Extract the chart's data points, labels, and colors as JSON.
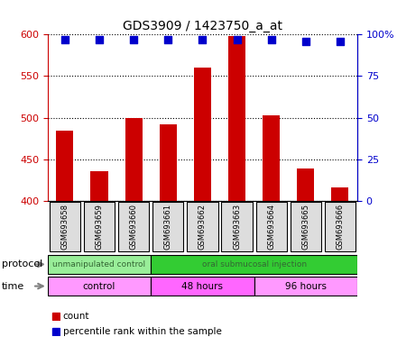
{
  "title": "GDS3909 / 1423750_a_at",
  "samples": [
    "GSM693658",
    "GSM693659",
    "GSM693660",
    "GSM693661",
    "GSM693662",
    "GSM693663",
    "GSM693664",
    "GSM693665",
    "GSM693666"
  ],
  "counts": [
    484,
    436,
    500,
    492,
    560,
    598,
    503,
    439,
    416
  ],
  "percentile_ranks": [
    97,
    97,
    97,
    97,
    97,
    97,
    97,
    96,
    96
  ],
  "ylim_left": [
    400,
    600
  ],
  "ylim_right": [
    0,
    100
  ],
  "yticks_left": [
    400,
    450,
    500,
    550,
    600
  ],
  "yticks_right": [
    0,
    25,
    50,
    75,
    100
  ],
  "ytick_right_labels": [
    "0",
    "25",
    "50",
    "75",
    "100%"
  ],
  "bar_color": "#cc0000",
  "dot_color": "#0000cc",
  "bar_width": 0.5,
  "protocol_groups": [
    {
      "label": "unmanipulated control",
      "start": 0,
      "end": 3,
      "color": "#99ee99",
      "text_color": "#336633"
    },
    {
      "label": "oral submucosal injection",
      "start": 3,
      "end": 9,
      "color": "#33cc33",
      "text_color": "#336633"
    }
  ],
  "time_groups": [
    {
      "label": "control",
      "start": 0,
      "end": 3,
      "color": "#ff99ff"
    },
    {
      "label": "48 hours",
      "start": 3,
      "end": 6,
      "color": "#ff66ff"
    },
    {
      "label": "96 hours",
      "start": 6,
      "end": 9,
      "color": "#ff99ff"
    }
  ],
  "legend_count_color": "#cc0000",
  "legend_pct_color": "#0000cc",
  "bg_color": "#ffffff",
  "protocol_row_label": "protocol",
  "time_row_label": "time",
  "sample_box_color": "#dddddd"
}
